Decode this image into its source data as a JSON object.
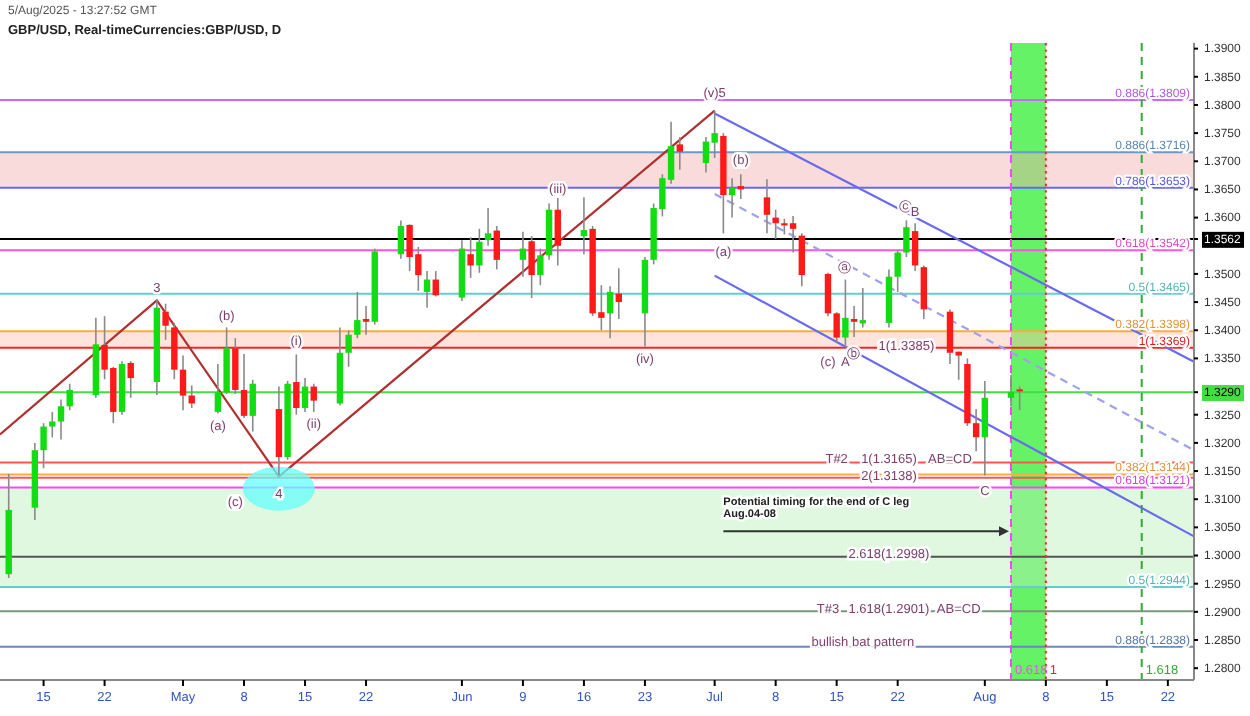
{
  "chart_data": {
    "type": "candlestick",
    "title": "GBP/USD, Real-timeCurrencies:GBP/USD, D",
    "subtitle": "5/Aug/2025 - 13:27:52 GMT",
    "x": [
      "2025-04-11",
      "2025-04-14",
      "2025-04-15",
      "2025-04-16",
      "2025-04-17",
      "2025-04-18",
      "2025-04-21",
      "2025-04-22",
      "2025-04-23",
      "2025-04-24",
      "2025-04-25",
      "2025-04-28",
      "2025-04-29",
      "2025-04-30",
      "2025-05-01",
      "2025-05-02",
      "2025-05-05",
      "2025-05-06",
      "2025-05-07",
      "2025-05-08",
      "2025-05-09",
      "2025-05-12",
      "2025-05-13",
      "2025-05-14",
      "2025-05-15",
      "2025-05-16",
      "2025-05-19",
      "2025-05-20",
      "2025-05-21",
      "2025-05-22",
      "2025-05-23",
      "2025-05-26",
      "2025-05-27",
      "2025-05-28",
      "2025-05-29",
      "2025-05-30",
      "2025-06-02",
      "2025-06-03",
      "2025-06-04",
      "2025-06-05",
      "2025-06-06",
      "2025-06-09",
      "2025-06-10",
      "2025-06-11",
      "2025-06-12",
      "2025-06-13",
      "2025-06-16",
      "2025-06-17",
      "2025-06-18",
      "2025-06-19",
      "2025-06-20",
      "2025-06-23",
      "2025-06-24",
      "2025-06-25",
      "2025-06-26",
      "2025-06-27",
      "2025-06-30",
      "2025-07-01",
      "2025-07-02",
      "2025-07-03",
      "2025-07-04",
      "2025-07-07",
      "2025-07-08",
      "2025-07-09",
      "2025-07-10",
      "2025-07-11",
      "2025-07-14",
      "2025-07-15",
      "2025-07-16",
      "2025-07-17",
      "2025-07-18",
      "2025-07-21",
      "2025-07-22",
      "2025-07-23",
      "2025-07-24",
      "2025-07-25",
      "2025-07-28",
      "2025-07-29",
      "2025-07-30",
      "2025-07-31",
      "2025-08-01",
      "2025-08-04",
      "2025-08-05"
    ],
    "ohlc": [
      [
        1.2967,
        1.3145,
        1.296,
        1.3081
      ],
      [
        1.3085,
        1.32,
        1.3063,
        1.3187
      ],
      [
        1.3187,
        1.3235,
        1.3155,
        1.3229
      ],
      [
        1.3229,
        1.3255,
        1.321,
        1.3238
      ],
      [
        1.3238,
        1.3277,
        1.3206,
        1.3265
      ],
      [
        1.3265,
        1.3305,
        1.3258,
        1.3294
      ],
      [
        1.3285,
        1.3422,
        1.328,
        1.3375
      ],
      [
        1.3374,
        1.3425,
        1.3313,
        1.333
      ],
      [
        1.3333,
        1.3335,
        1.3235,
        1.3255
      ],
      [
        1.3255,
        1.3345,
        1.325,
        1.334
      ],
      [
        1.3342,
        1.3345,
        1.328,
        1.3315
      ],
      [
        1.3308,
        1.3455,
        1.3285,
        1.344
      ],
      [
        1.3433,
        1.3447,
        1.3383,
        1.3408
      ],
      [
        1.3405,
        1.3413,
        1.3313,
        1.333
      ],
      [
        1.333,
        1.3355,
        1.3258,
        1.3284
      ],
      [
        1.3284,
        1.3302,
        1.3262,
        1.327
      ],
      [
        1.3255,
        1.334,
        1.3252,
        1.329
      ],
      [
        1.329,
        1.3405,
        1.3287,
        1.3368
      ],
      [
        1.3368,
        1.3386,
        1.3287,
        1.3294
      ],
      [
        1.3294,
        1.3358,
        1.3244,
        1.3248
      ],
      [
        1.3248,
        1.3312,
        1.322,
        1.3305
      ],
      [
        1.326,
        1.33,
        1.3143,
        1.3175
      ],
      [
        1.3175,
        1.331,
        1.317,
        1.3305
      ],
      [
        1.3308,
        1.3357,
        1.325,
        1.3262
      ],
      [
        1.3262,
        1.3315,
        1.3255,
        1.33
      ],
      [
        1.33,
        1.3305,
        1.3255,
        1.3275
      ],
      [
        1.327,
        1.3405,
        1.3267,
        1.336
      ],
      [
        1.336,
        1.34,
        1.3335,
        1.3392
      ],
      [
        1.3392,
        1.3468,
        1.3386,
        1.3418
      ],
      [
        1.342,
        1.3443,
        1.3392,
        1.3415
      ],
      [
        1.3415,
        1.3545,
        1.341,
        1.354
      ],
      [
        1.3535,
        1.3595,
        1.3527,
        1.3585
      ],
      [
        1.3587,
        1.3588,
        1.3505,
        1.353
      ],
      [
        1.3535,
        1.3548,
        1.347,
        1.3498
      ],
      [
        1.3468,
        1.3505,
        1.344,
        1.349
      ],
      [
        1.349,
        1.3505,
        1.346,
        1.3462
      ],
      [
        1.3458,
        1.356,
        1.3452,
        1.3545
      ],
      [
        1.3535,
        1.3565,
        1.3493,
        1.3515
      ],
      [
        1.3515,
        1.358,
        1.3502,
        1.3557
      ],
      [
        1.356,
        1.3617,
        1.355,
        1.3572
      ],
      [
        1.3577,
        1.3585,
        1.3508,
        1.3525
      ],
      [
        1.3525,
        1.3575,
        1.3495,
        1.3545
      ],
      [
        1.3558,
        1.3567,
        1.3457,
        1.3498
      ],
      [
        1.3498,
        1.3545,
        1.348,
        1.3533
      ],
      [
        1.3533,
        1.3625,
        1.3525,
        1.3614
      ],
      [
        1.3614,
        1.3636,
        1.3515,
        1.355
      ],
      [
        1.3567,
        1.3636,
        1.3535,
        1.3578
      ],
      [
        1.358,
        1.3585,
        1.3425,
        1.343
      ],
      [
        1.3432,
        1.348,
        1.34,
        1.3422
      ],
      [
        1.343,
        1.3478,
        1.3386,
        1.3468
      ],
      [
        1.3465,
        1.351,
        1.342,
        1.345
      ],
      [
        1.343,
        1.353,
        1.3371,
        1.3525
      ],
      [
        1.3525,
        1.3625,
        1.3517,
        1.3617
      ],
      [
        1.3615,
        1.3677,
        1.3602,
        1.367
      ],
      [
        1.3667,
        1.377,
        1.366,
        1.3727
      ],
      [
        1.373,
        1.3743,
        1.3685,
        1.3717
      ],
      [
        1.3697,
        1.3743,
        1.368,
        1.3735
      ],
      [
        1.3733,
        1.379,
        1.3706,
        1.375
      ],
      [
        1.3745,
        1.375,
        1.3572,
        1.364
      ],
      [
        1.364,
        1.367,
        1.36,
        1.3653
      ],
      [
        1.3656,
        1.3677,
        1.3633,
        1.365
      ],
      [
        1.3636,
        1.3668,
        1.3572,
        1.3605
      ],
      [
        1.36,
        1.3614,
        1.3562,
        1.359
      ],
      [
        1.359,
        1.3598,
        1.357,
        1.3586
      ],
      [
        1.359,
        1.3603,
        1.3538,
        1.358
      ],
      [
        1.3568,
        1.3572,
        1.3478,
        1.3498
      ],
      [
        1.35,
        1.3502,
        1.3425,
        1.343
      ],
      [
        1.343,
        1.3432,
        1.3377,
        1.3387
      ],
      [
        1.3387,
        1.349,
        1.337,
        1.3422
      ],
      [
        1.342,
        1.3443,
        1.3388,
        1.3415
      ],
      [
        1.3412,
        1.3475,
        1.3405,
        1.3418
      ],
      [
        1.3413,
        1.3508,
        1.3405,
        1.3495
      ],
      [
        1.3495,
        1.3542,
        1.3468,
        1.3538
      ],
      [
        1.3538,
        1.3595,
        1.353,
        1.3583
      ],
      [
        1.3576,
        1.359,
        1.3505,
        1.3515
      ],
      [
        1.3512,
        1.3515,
        1.342,
        1.3437
      ],
      [
        1.3433,
        1.3437,
        1.334,
        1.336
      ],
      [
        1.3362,
        1.3362,
        1.3312,
        1.3355
      ],
      [
        1.334,
        1.335,
        1.323,
        1.3235
      ],
      [
        1.3235,
        1.326,
        1.3185,
        1.321
      ],
      [
        1.321,
        1.331,
        1.3142,
        1.328
      ],
      [
        1.328,
        1.332,
        1.3265,
        1.329
      ],
      [
        1.3295,
        1.33,
        1.3258,
        1.3292
      ]
    ],
    "series": [
      {
        "type": "line",
        "color": "#b03030",
        "x": [
          "2025-04-10",
          "2025-04-28",
          "2025-05-12",
          "2025-07-01"
        ],
        "values": [
          1.3215,
          1.3453,
          1.314,
          1.379
        ]
      },
      {
        "type": "line",
        "color": "#6a6aee",
        "x": [
          "2025-07-01",
          "2025-08-25"
        ],
        "values": [
          1.3785,
          1.3344
        ]
      },
      {
        "type": "line",
        "color": "#a0a0f0",
        "line_style": "dashed",
        "x": [
          "2025-07-01",
          "2025-08-25"
        ],
        "values": [
          1.3642,
          1.3187
        ]
      },
      {
        "type": "line",
        "color": "#6a6aee",
        "x": [
          "2025-07-01",
          "2025-08-25"
        ],
        "values": [
          1.3497,
          1.3034
        ]
      }
    ],
    "xlim": [
      "2025-04-10",
      "2025-08-25"
    ],
    "ylim": [
      1.2779,
      1.391
    ],
    "xticks": [
      {
        "value": "2025-04-15",
        "label": "15"
      },
      {
        "value": "2025-04-22",
        "label": "22"
      },
      {
        "value": "2025-05-01",
        "label": "May"
      },
      {
        "value": "2025-05-08",
        "label": "8"
      },
      {
        "value": "2025-05-15",
        "label": "15"
      },
      {
        "value": "2025-05-22",
        "label": "22"
      },
      {
        "value": "2025-06-02",
        "label": "Jun"
      },
      {
        "value": "2025-06-09",
        "label": "9"
      },
      {
        "value": "2025-06-16",
        "label": "16"
      },
      {
        "value": "2025-06-23",
        "label": "23"
      },
      {
        "value": "2025-07-01",
        "label": "Jul"
      },
      {
        "value": "2025-07-08",
        "label": "8"
      },
      {
        "value": "2025-07-15",
        "label": "15"
      },
      {
        "value": "2025-07-22",
        "label": "22"
      },
      {
        "value": "2025-08-01",
        "label": "Aug"
      },
      {
        "value": "2025-08-08",
        "label": "8"
      },
      {
        "value": "2025-08-15",
        "label": "15"
      },
      {
        "value": "2025-08-22",
        "label": "22"
      }
    ],
    "yticks": [
      {
        "value": 1.28,
        "label": "1.2800"
      },
      {
        "value": 1.285,
        "label": "1.2850"
      },
      {
        "value": 1.29,
        "label": "1.2900"
      },
      {
        "value": 1.295,
        "label": "1.2950"
      },
      {
        "value": 1.3,
        "label": "1.3000"
      },
      {
        "value": 1.305,
        "label": "1.3050"
      },
      {
        "value": 1.31,
        "label": "1.3100"
      },
      {
        "value": 1.315,
        "label": "1.3150"
      },
      {
        "value": 1.32,
        "label": "1.3200"
      },
      {
        "value": 1.325,
        "label": "1.3250"
      },
      {
        "value": 1.329,
        "label": "1.3290"
      },
      {
        "value": 1.335,
        "label": "1.3350"
      },
      {
        "value": 1.34,
        "label": "1.3400"
      },
      {
        "value": 1.345,
        "label": "1.3450"
      },
      {
        "value": 1.35,
        "label": "1.3500"
      },
      {
        "value": 1.3562,
        "label": "1.3562"
      },
      {
        "value": 1.36,
        "label": "1.3600"
      },
      {
        "value": 1.365,
        "label": "1.3650"
      },
      {
        "value": 1.37,
        "label": "1.3700"
      },
      {
        "value": 1.375,
        "label": "1.3750"
      },
      {
        "value": 1.38,
        "label": "1.3800"
      },
      {
        "value": 1.385,
        "label": "1.3850"
      },
      {
        "value": 1.39,
        "label": "1.3900"
      }
    ],
    "bands": [
      {
        "axis": "x",
        "from": "2025-08-04",
        "to": "2025-08-08",
        "color": "#33ee33"
      },
      {
        "axis": "y",
        "from": 1.3653,
        "to": 1.3716,
        "color": "#f4b0b0"
      },
      {
        "axis": "y",
        "from": 1.3369,
        "to": 1.3398,
        "color": "#ffc4b0"
      },
      {
        "axis": "y",
        "from": 1.2944,
        "to": 1.3121,
        "color": "#b8f0b8"
      }
    ],
    "ref_lines": [
      {
        "axis": "y",
        "value": 1.3809,
        "label": "0.886(1.3809)",
        "color": "#cc66ff"
      },
      {
        "axis": "y",
        "value": 1.3716,
        "label": "0.886(1.3716)",
        "color": "#6699cc"
      },
      {
        "axis": "y",
        "value": 1.3653,
        "label": "0.786(1.3653)",
        "color": "#6666ff"
      },
      {
        "axis": "y",
        "value": 1.3562,
        "color": "#000000"
      },
      {
        "axis": "y",
        "value": 1.3542,
        "label": "0.618(1.3542)",
        "color": "#ff55dd"
      },
      {
        "axis": "y",
        "value": 1.3465,
        "label": "0.5(1.3465)",
        "color": "#66cccc"
      },
      {
        "axis": "y",
        "value": 1.3398,
        "label": "0.382(1.3398)",
        "color": "#ffaa44"
      },
      {
        "axis": "y",
        "value": 1.3369,
        "label": "1(1.3369)",
        "color": "#ff2222"
      },
      {
        "axis": "y",
        "value": 1.329,
        "color": "#44dd44"
      },
      {
        "axis": "y",
        "value": 1.3165,
        "color": "#ff5555"
      },
      {
        "axis": "y",
        "value": 1.3144,
        "label": "0.382(1.3144)",
        "color": "#ffaa44"
      },
      {
        "axis": "y",
        "value": 1.3138,
        "color": "#ff5555"
      },
      {
        "axis": "y",
        "value": 1.3121,
        "label": "0.618(1.3121)",
        "color": "#ff44ff"
      },
      {
        "axis": "y",
        "value": 1.2998,
        "color": "#555555"
      },
      {
        "axis": "y",
        "value": 1.2944,
        "label": "0.5(1.2944)",
        "color": "#66cccc"
      },
      {
        "axis": "y",
        "value": 1.2901,
        "color": "#779977"
      },
      {
        "axis": "y",
        "value": 1.2838,
        "label": "0.886(1.2838)",
        "color": "#6688bb"
      },
      {
        "axis": "x",
        "value": "2025-08-04",
        "label": "0.618",
        "color": "#ff44ff",
        "line_style": "dashed"
      },
      {
        "axis": "x",
        "value": "2025-08-08",
        "label": "1",
        "color": "#ff2222",
        "line_style": "dotted"
      },
      {
        "axis": "x",
        "value": "2025-08-19",
        "label": "1.618",
        "color": "#33aa33",
        "line_style": "dashed"
      }
    ],
    "annotations": [
      {
        "text": "3",
        "x": "2025-04-28",
        "y": 1.3455
      },
      {
        "text": "(a)",
        "x": "2025-05-05",
        "y": 1.3252
      },
      {
        "text": "(b)",
        "x": "2025-05-06",
        "y": 1.3405
      },
      {
        "text": "(c)",
        "x": "2025-05-07",
        "y": 1.3121
      },
      {
        "text": "4",
        "x": "2025-05-12",
        "y": 1.311
      },
      {
        "text": "(i)",
        "x": "2025-05-14",
        "y": 1.3382
      },
      {
        "text": "(ii)",
        "x": "2025-05-16",
        "y": 1.3255
      },
      {
        "text": "(iii)",
        "x": "2025-06-13",
        "y": 1.3652
      },
      {
        "text": "(iv)",
        "x": "2025-06-23",
        "y": 1.3371
      },
      {
        "text": "(v)5",
        "x": "2025-07-01",
        "y": 1.3823
      },
      {
        "text": "(a)",
        "x": "2025-07-02",
        "y": 1.354
      },
      {
        "text": "(b)",
        "x": "2025-07-04",
        "y": 1.3703
      },
      {
        "text": "(c)",
        "x": "2025-07-14",
        "y": 1.3369
      },
      {
        "text": "A",
        "x": "2025-07-16",
        "y": 1.3369
      },
      {
        "text": "ⓐ",
        "x": "2025-07-16",
        "y": 1.3512
      },
      {
        "text": "ⓑ",
        "x": "2025-07-17",
        "y": 1.3359
      },
      {
        "text": "ⓒ",
        "x": "2025-07-23",
        "y": 1.362
      },
      {
        "text": "B",
        "x": "2025-07-24",
        "y": 1.359
      },
      {
        "text": "C",
        "x": "2025-08-01",
        "y": 1.3116
      },
      {
        "text": "1(1.3385)",
        "x": "2025-07-23",
        "y": 1.3398
      },
      {
        "text": "T#2",
        "x": "2025-07-15",
        "y": 1.3172
      },
      {
        "text": "1(1.3165)",
        "x": "2025-07-21",
        "y": 1.3172
      },
      {
        "text": "AB=CD",
        "x": "2025-07-28",
        "y": 1.3172
      },
      {
        "text": "2(1.3138)",
        "x": "2025-07-21",
        "y": 1.3142
      },
      {
        "text": "Potential timing for the end of C leg\nAug.04-08",
        "x": "2025-07-02",
        "y": 1.3121
      },
      {
        "text": "2.618(1.2998)",
        "x": "2025-07-21",
        "y": 1.3003
      },
      {
        "text": "T#3",
        "x": "2025-07-14",
        "y": 1.2906
      },
      {
        "text": "1.618(1.2901)",
        "x": "2025-07-21",
        "y": 1.2906
      },
      {
        "text": "AB=CD",
        "x": "2025-07-29",
        "y": 1.2906
      },
      {
        "text": "bullish bat pattern",
        "x": "2025-07-18",
        "y": 1.2847
      }
    ]
  }
}
